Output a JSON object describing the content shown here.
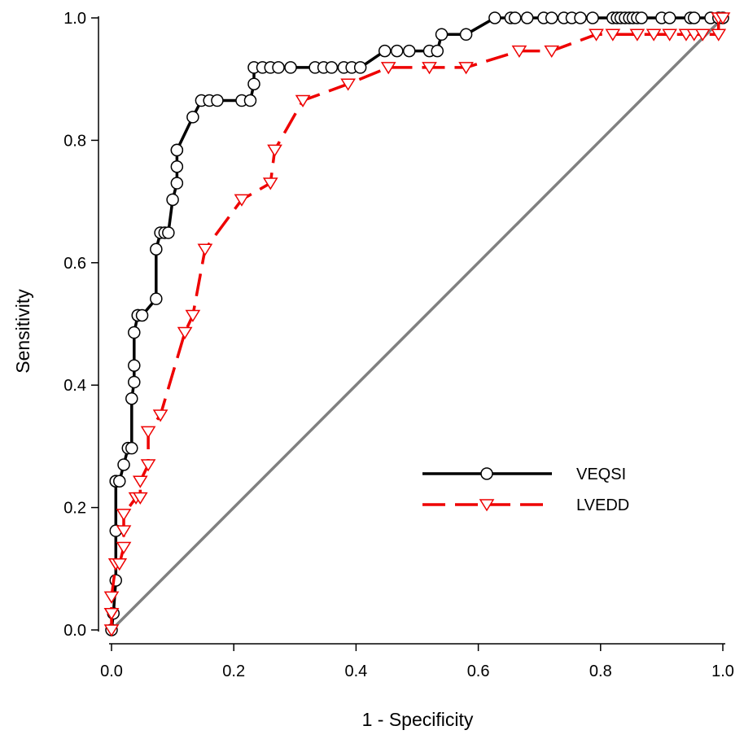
{
  "chart_data": {
    "type": "line",
    "xlabel": "1 - Specificity",
    "ylabel": "Sensitivity",
    "xlim": [
      0,
      1
    ],
    "ylim": [
      0,
      1
    ],
    "xticks": [
      "0.0",
      "0.2",
      "0.4",
      "0.6",
      "0.8",
      "1.0"
    ],
    "yticks": [
      "0.0",
      "0.2",
      "0.4",
      "0.6",
      "0.8",
      "1.0"
    ],
    "grid": false,
    "legend_position": "center-right",
    "reference_line": {
      "x": [
        0,
        1
      ],
      "y": [
        0,
        1
      ],
      "color": "#808080"
    },
    "series": [
      {
        "name": "VEQSI",
        "color": "#000000",
        "dash": "solid",
        "marker": "circle",
        "x": [
          0.0,
          0.003,
          0.007,
          0.007,
          0.007,
          0.007,
          0.013,
          0.02,
          0.027,
          0.033,
          0.033,
          0.037,
          0.037,
          0.037,
          0.043,
          0.043,
          0.05,
          0.073,
          0.073,
          0.08,
          0.087,
          0.093,
          0.1,
          0.107,
          0.107,
          0.107,
          0.107,
          0.133,
          0.147,
          0.16,
          0.173,
          0.213,
          0.227,
          0.233,
          0.233,
          0.247,
          0.26,
          0.273,
          0.293,
          0.333,
          0.347,
          0.36,
          0.38,
          0.393,
          0.407,
          0.447,
          0.467,
          0.487,
          0.52,
          0.533,
          0.54,
          0.58,
          0.627,
          0.653,
          0.66,
          0.68,
          0.707,
          0.72,
          0.74,
          0.753,
          0.767,
          0.787,
          0.82,
          0.827,
          0.833,
          0.84,
          0.847,
          0.853,
          0.86,
          0.867,
          0.9,
          0.913,
          0.947,
          0.953,
          0.98,
          0.993,
          1.0
        ],
        "y": [
          0.0,
          0.027,
          0.081,
          0.162,
          0.243,
          0.243,
          0.243,
          0.27,
          0.297,
          0.297,
          0.378,
          0.405,
          0.432,
          0.486,
          0.514,
          0.514,
          0.514,
          0.541,
          0.622,
          0.649,
          0.649,
          0.649,
          0.703,
          0.73,
          0.757,
          0.784,
          0.784,
          0.838,
          0.865,
          0.865,
          0.865,
          0.865,
          0.865,
          0.892,
          0.919,
          0.919,
          0.919,
          0.919,
          0.919,
          0.919,
          0.919,
          0.919,
          0.919,
          0.919,
          0.919,
          0.946,
          0.946,
          0.946,
          0.946,
          0.946,
          0.973,
          0.973,
          1.0,
          1.0,
          1.0,
          1.0,
          1.0,
          1.0,
          1.0,
          1.0,
          1.0,
          1.0,
          1.0,
          1.0,
          1.0,
          1.0,
          1.0,
          1.0,
          1.0,
          1.0,
          1.0,
          1.0,
          1.0,
          1.0,
          1.0,
          1.0,
          1.0
        ]
      },
      {
        "name": "LVEDD",
        "color": "#ee0000",
        "dash": "dashed",
        "marker": "triangle-down",
        "x": [
          0.0,
          0.0,
          0.0,
          0.0,
          0.007,
          0.007,
          0.013,
          0.02,
          0.02,
          0.02,
          0.04,
          0.047,
          0.047,
          0.06,
          0.06,
          0.08,
          0.12,
          0.133,
          0.153,
          0.213,
          0.26,
          0.267,
          0.313,
          0.387,
          0.453,
          0.52,
          0.58,
          0.667,
          0.72,
          0.793,
          0.82,
          0.86,
          0.887,
          0.913,
          0.94,
          0.953,
          0.967,
          0.993,
          0.993,
          1.0
        ],
        "y": [
          0.0,
          0.027,
          0.027,
          0.054,
          0.108,
          0.108,
          0.108,
          0.135,
          0.162,
          0.189,
          0.216,
          0.216,
          0.243,
          0.27,
          0.324,
          0.351,
          0.486,
          0.514,
          0.622,
          0.703,
          0.73,
          0.784,
          0.865,
          0.892,
          0.919,
          0.919,
          0.919,
          0.946,
          0.946,
          0.973,
          0.973,
          0.973,
          0.973,
          0.973,
          0.973,
          0.973,
          0.973,
          0.973,
          1.0,
          1.0
        ]
      }
    ]
  }
}
